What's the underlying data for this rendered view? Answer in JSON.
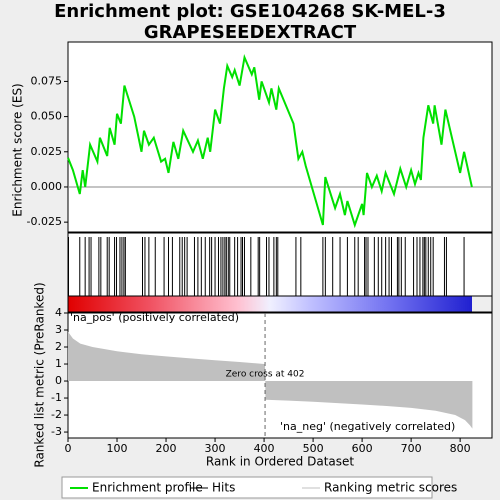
{
  "chart_data": [
    {
      "type": "line",
      "title": [
        "Enrichment plot: GSE104268 SK-MEL-3",
        "GRAPESEEDEXTRACT"
      ],
      "y_label": "Enrichment score (ES)",
      "x": [
        0,
        10,
        24,
        30,
        35,
        45,
        60,
        65,
        80,
        85,
        95,
        100,
        108,
        115,
        135,
        150,
        155,
        165,
        175,
        190,
        198,
        205,
        215,
        225,
        235,
        255,
        265,
        275,
        285,
        290,
        300,
        310,
        318,
        325,
        335,
        340,
        350,
        360,
        375,
        380,
        390,
        395,
        410,
        415,
        425,
        430,
        460,
        470,
        478,
        485,
        520,
        525,
        545,
        555,
        565,
        570,
        585,
        600,
        603,
        610,
        620,
        630,
        640,
        648,
        665,
        678,
        690,
        700,
        708,
        715,
        720,
        725,
        735,
        745,
        748,
        762,
        770,
        800,
        808,
        824
      ],
      "series": [
        {
          "name": "Enrichment profile",
          "color": "#00e000",
          "values": [
            0.0207,
            0.012,
            -0.005,
            0.012,
            0.0,
            0.03,
            0.018,
            0.035,
            0.022,
            0.042,
            0.03,
            0.052,
            0.045,
            0.072,
            0.05,
            0.025,
            0.04,
            0.03,
            0.035,
            0.018,
            0.02,
            0.01,
            0.032,
            0.02,
            0.04,
            0.025,
            0.033,
            0.02,
            0.035,
            0.025,
            0.055,
            0.045,
            0.07,
            0.086,
            0.078,
            0.083,
            0.072,
            0.092,
            0.08,
            0.085,
            0.062,
            0.075,
            0.06,
            0.07,
            0.055,
            0.07,
            0.045,
            0.02,
            0.025,
            0.015,
            -0.027,
            0.007,
            -0.015,
            -0.005,
            -0.02,
            -0.01,
            -0.027,
            -0.012,
            -0.02,
            0.01,
            0.0,
            0.008,
            -0.003,
            0.01,
            -0.005,
            0.013,
            0.0,
            0.012,
            0.002,
            0.01,
            0.005,
            0.035,
            0.058,
            0.045,
            0.058,
            0.03,
            0.055,
            0.01,
            0.025,
            0.0
          ]
        }
      ],
      "xlim": [
        0,
        865
      ],
      "ylim": [
        -0.032,
        0.103
      ],
      "yticks": [
        -0.025,
        {
          "value": 0,
          "label": "0.000"
        },
        0.025,
        {
          "value": 0.05,
          "label": "0.050"
        },
        0.075
      ]
    },
    {
      "type": "hits",
      "series": [
        {
          "name": "Hits",
          "color": "#000000",
          "values": [
            1,
            24,
            35,
            43,
            47,
            63,
            67,
            80,
            84,
            95,
            99,
            106,
            110,
            114,
            117,
            152,
            157,
            165,
            178,
            196,
            205,
            213,
            228,
            233,
            238,
            243,
            258,
            265,
            272,
            280,
            289,
            293,
            300,
            307,
            312,
            316,
            320,
            323,
            327,
            330,
            340,
            346,
            353,
            356,
            360,
            373,
            388,
            391,
            405,
            410,
            420,
            425,
            428,
            465,
            475,
            520,
            525,
            540,
            555,
            570,
            585,
            592,
            605,
            608,
            612,
            625,
            633,
            640,
            648,
            655,
            660,
            672,
            675,
            680,
            688,
            705,
            712,
            718,
            724,
            727,
            730,
            735,
            740,
            745,
            768,
            772,
            808
          ]
        }
      ],
      "xlim": [
        0,
        865
      ]
    },
    {
      "type": "area",
      "y_label": "Ranked list metric (PreRanked)",
      "x_label": "Rank in Ordered Dataset",
      "x": [
        0,
        10,
        25,
        50,
        100,
        150,
        200,
        250,
        300,
        350,
        400,
        402,
        403,
        450,
        500,
        550,
        600,
        650,
        700,
        750,
        790,
        810,
        820,
        825
      ],
      "series": [
        {
          "name": "Ranking metric scores",
          "color": "#c0c0c0",
          "values": [
            2.9,
            2.5,
            2.2,
            2.0,
            1.75,
            1.58,
            1.45,
            1.33,
            1.22,
            1.12,
            1.0,
            1.0,
            -1.1,
            -1.15,
            -1.22,
            -1.3,
            -1.38,
            -1.47,
            -1.58,
            -1.75,
            -2.0,
            -2.3,
            -2.6,
            -2.8
          ]
        }
      ],
      "xlim": [
        0,
        865
      ],
      "ylim": [
        -3.35,
        4
      ],
      "xticks": [
        0,
        100,
        200,
        300,
        400,
        500,
        600,
        700,
        800
      ],
      "yticks": [
        4,
        3,
        2,
        1,
        0,
        -1,
        -2,
        -3
      ],
      "zero_cross": {
        "value": 402,
        "label": "Zero cross at 402"
      },
      "annotations": [
        {
          "text": "'na_pos' (positively correlated)",
          "color": "#cc0000"
        },
        {
          "text": "'na_neg' (negatively correlated)",
          "color": "#2222bb"
        }
      ]
    }
  ]
}
